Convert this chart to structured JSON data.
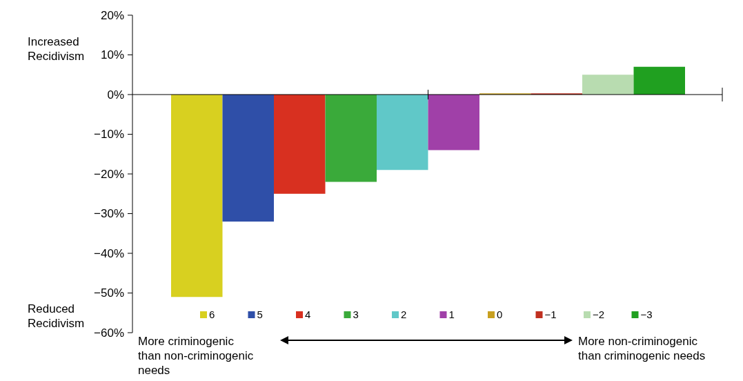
{
  "chart_data": {
    "type": "bar",
    "categories": [
      null,
      null,
      null,
      null,
      null,
      null,
      null,
      null,
      null,
      null
    ],
    "series": [
      {
        "name": "6",
        "color": "#d8d020",
        "values": [
          -51,
          null,
          null,
          null,
          null,
          null,
          null,
          null,
          null,
          null
        ]
      },
      {
        "name": "5",
        "color": "#2f4fa8",
        "values": [
          null,
          -32,
          null,
          null,
          null,
          null,
          null,
          null,
          null,
          null
        ]
      },
      {
        "name": "4",
        "color": "#d83020",
        "values": [
          null,
          null,
          -25,
          null,
          null,
          null,
          null,
          null,
          null,
          null
        ]
      },
      {
        "name": "3",
        "color": "#3aaa3a",
        "values": [
          null,
          null,
          null,
          -22,
          null,
          null,
          null,
          null,
          null,
          null
        ]
      },
      {
        "name": "2",
        "color": "#60c8c8",
        "values": [
          null,
          null,
          null,
          null,
          -19,
          null,
          null,
          null,
          null,
          null
        ]
      },
      {
        "name": "1",
        "color": "#a040a8",
        "values": [
          null,
          null,
          null,
          null,
          null,
          -14,
          null,
          null,
          null,
          null
        ]
      },
      {
        "name": "0",
        "color": "#c8a020",
        "values": [
          null,
          null,
          null,
          null,
          null,
          null,
          0.3,
          null,
          null,
          null
        ]
      },
      {
        "name": "−1",
        "color": "#c03020",
        "values": [
          null,
          null,
          null,
          null,
          null,
          null,
          null,
          0.3,
          null,
          null
        ]
      },
      {
        "name": "−2",
        "color": "#b8dcb0",
        "values": [
          null,
          null,
          null,
          null,
          null,
          null,
          null,
          null,
          5,
          null
        ]
      },
      {
        "name": "−3",
        "color": "#20a020",
        "values": [
          null,
          null,
          null,
          null,
          null,
          null,
          null,
          null,
          null,
          7
        ]
      }
    ],
    "ylim": [
      -60,
      20
    ],
    "yticks": [
      {
        "value": 20,
        "label": "20%"
      },
      {
        "value": 10,
        "label": "10%"
      },
      {
        "value": 0,
        "label": "0%"
      },
      {
        "value": -10,
        "label": "−10%"
      },
      {
        "value": -20,
        "label": "−20%"
      },
      {
        "value": -30,
        "label": "−30%"
      },
      {
        "value": -40,
        "label": "−40%"
      },
      {
        "value": -50,
        "label": "−50%"
      },
      {
        "value": -60,
        "label": "−60%"
      }
    ],
    "legend": "bottom",
    "stacked": true,
    "annotations": [
      "Increased Recidivism",
      "Reduced Recidivism",
      "More criminogenic than non-criminogenic needs",
      "More non-criminogenic than criminogenic needs"
    ]
  }
}
